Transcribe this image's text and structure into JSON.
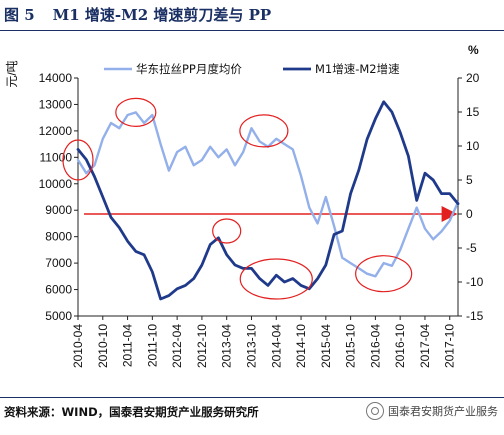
{
  "figure": {
    "number": "图 5",
    "title": "M1 增速-M2 增速剪刀差与 PP",
    "source": "资料来源：WIND，国泰君安期货产业服务研究所",
    "watermark": "国泰君安期货产业服务"
  },
  "colors": {
    "pp_line": "#93b0ea",
    "spread_line": "#1f3a8a",
    "zero_arrow": "#e32020",
    "ellipse": "#e32020",
    "header": "#1a2f63"
  },
  "chart_data": {
    "type": "line",
    "left_axis": {
      "unit_label": "元/吨",
      "min": 5000,
      "max": 14000,
      "ticks": [
        "5000",
        "6000",
        "7000",
        "8000",
        "9000",
        "10000",
        "11000",
        "12000",
        "13000",
        "14000"
      ]
    },
    "right_axis": {
      "unit_label": "%",
      "min": -15,
      "max": 20,
      "ticks": [
        "-15",
        "-10",
        "-5",
        "0",
        "5",
        "10",
        "15",
        "20"
      ]
    },
    "x_ticks": [
      "2010-04",
      "2010-10",
      "2011-04",
      "2011-10",
      "2012-04",
      "2012-10",
      "2013-04",
      "2013-10",
      "2014-04",
      "2014-10",
      "2015-04",
      "2015-10",
      "2016-04",
      "2016-10",
      "2017-04",
      "2017-10"
    ],
    "series": [
      {
        "name": "华东拉丝PP月度均价",
        "axis": "left",
        "x": [
          "2010-04",
          "2010-06",
          "2010-08",
          "2010-10",
          "2010-12",
          "2011-02",
          "2011-04",
          "2011-06",
          "2011-08",
          "2011-10",
          "2011-12",
          "2012-02",
          "2012-04",
          "2012-06",
          "2012-08",
          "2012-10",
          "2012-12",
          "2013-02",
          "2013-04",
          "2013-06",
          "2013-08",
          "2013-10",
          "2013-12",
          "2014-02",
          "2014-04",
          "2014-06",
          "2014-08",
          "2014-10",
          "2014-12",
          "2015-02",
          "2015-04",
          "2015-06",
          "2015-08",
          "2015-10",
          "2015-12",
          "2016-02",
          "2016-04",
          "2016-06",
          "2016-08",
          "2016-10",
          "2016-12",
          "2017-02",
          "2017-04",
          "2017-06",
          "2017-08",
          "2017-10",
          "2017-12"
        ],
        "values": [
          10900,
          10400,
          10700,
          11700,
          12300,
          12100,
          12600,
          12700,
          12300,
          12600,
          11500,
          10500,
          11200,
          11400,
          10700,
          10900,
          11400,
          11000,
          11300,
          10700,
          11200,
          12100,
          11600,
          11400,
          11700,
          11500,
          11300,
          10300,
          9100,
          8500,
          9500,
          8400,
          7200,
          7000,
          6800,
          6600,
          6500,
          7000,
          6900,
          7500,
          8300,
          9100,
          8300,
          7900,
          8200,
          8600,
          9300
        ]
      },
      {
        "name": "M1增速-M2增速",
        "axis": "right",
        "x": [
          "2010-04",
          "2010-06",
          "2010-08",
          "2010-10",
          "2010-12",
          "2011-02",
          "2011-04",
          "2011-06",
          "2011-08",
          "2011-10",
          "2011-12",
          "2012-02",
          "2012-04",
          "2012-06",
          "2012-08",
          "2012-10",
          "2012-12",
          "2013-02",
          "2013-04",
          "2013-06",
          "2013-08",
          "2013-10",
          "2013-12",
          "2014-02",
          "2014-04",
          "2014-06",
          "2014-08",
          "2014-10",
          "2014-12",
          "2015-02",
          "2015-04",
          "2015-06",
          "2015-08",
          "2015-10",
          "2015-12",
          "2016-02",
          "2016-04",
          "2016-06",
          "2016-08",
          "2016-10",
          "2016-12",
          "2017-02",
          "2017-04",
          "2017-06",
          "2017-08",
          "2017-10",
          "2017-12"
        ],
        "values": [
          9.5,
          8.0,
          5.5,
          2.5,
          -0.5,
          -2.0,
          -4.0,
          -5.5,
          -6.0,
          -8.5,
          -12.5,
          -12.0,
          -11.0,
          -10.5,
          -9.5,
          -7.5,
          -4.5,
          -3.5,
          -6.0,
          -7.5,
          -8.0,
          -8.0,
          -9.5,
          -10.5,
          -9.0,
          -10.0,
          -9.5,
          -10.5,
          -11.0,
          -9.5,
          -7.5,
          -3.0,
          -2.5,
          3.0,
          6.5,
          11.0,
          14.0,
          16.5,
          15.0,
          12.0,
          8.5,
          2.0,
          6.0,
          5.0,
          3.0,
          3.0,
          1.5
        ]
      }
    ],
    "reference_line": {
      "axis": "right",
      "value": 0,
      "style": "red arrow"
    },
    "highlights": [
      {
        "x": "2010-04",
        "y_left": 10900
      },
      {
        "x": "2011-06",
        "y_left": 12700
      },
      {
        "x": "2013-04",
        "y_right": -2.5
      },
      {
        "x": "2014-01",
        "y_left": 12000
      },
      {
        "x": "2014-04",
        "y_left": 6400
      },
      {
        "x": "2016-06",
        "y_left": 6600
      }
    ],
    "legend_position": "top",
    "grid": false
  }
}
